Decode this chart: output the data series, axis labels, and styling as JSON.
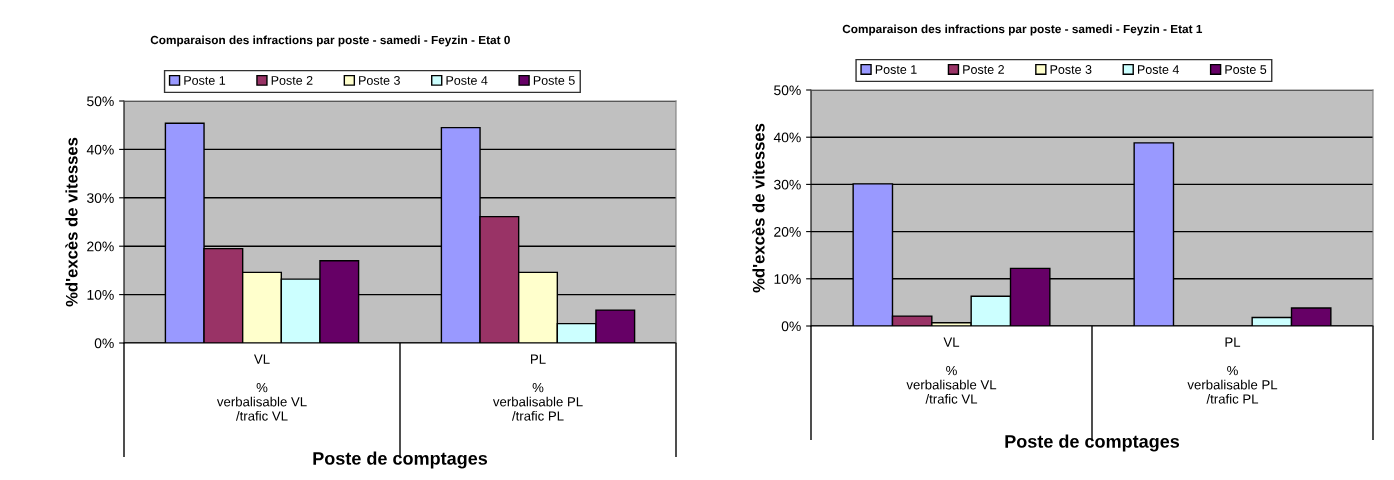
{
  "chart_data": [
    {
      "type": "bar",
      "title": "Comparaison des infractions par poste - samedi - Feyzin - Etat 0",
      "xlabel": "Poste de comptages",
      "ylabel": "%d'excès de vitesses",
      "categories": [
        "VL\n\n%\nverbalisable VL\n/trafic VL",
        "PL\n\n%\nverbalisable PL\n/trafic PL"
      ],
      "series": [
        {
          "name": "Poste 1",
          "color": "#9999ff",
          "values": [
            45.4,
            44.5
          ]
        },
        {
          "name": "Poste 2",
          "color": "#993366",
          "values": [
            19.5,
            26.1
          ]
        },
        {
          "name": "Poste 3",
          "color": "#ffffcc",
          "values": [
            14.6,
            14.6
          ]
        },
        {
          "name": "Poste 4",
          "color": "#ccffff",
          "values": [
            13.2,
            4.0
          ]
        },
        {
          "name": "Poste 5",
          "color": "#660066",
          "values": [
            17.0,
            6.8
          ]
        }
      ],
      "ylim": [
        0,
        50
      ],
      "yticks": [
        {
          "value": 0,
          "label": "0%"
        },
        {
          "value": 10,
          "label": "10%"
        },
        {
          "value": 20,
          "label": "20%"
        },
        {
          "value": 30,
          "label": "30%"
        },
        {
          "value": 40,
          "label": "40%"
        },
        {
          "value": 50,
          "label": "50%"
        }
      ],
      "grid": "y",
      "legend": "top"
    },
    {
      "type": "bar",
      "title": "Comparaison des infractions par poste - samedi - Feyzin - Etat 1",
      "xlabel": "Poste de comptages",
      "ylabel": "%d'excès de vitesses",
      "categories": [
        "VL\n\n%\nverbalisable VL\n/trafic VL",
        "PL\n\n%\nverbalisable PL\n/trafic PL"
      ],
      "series": [
        {
          "name": "Poste 1",
          "color": "#9999ff",
          "values": [
            30.1,
            38.8
          ]
        },
        {
          "name": "Poste 2",
          "color": "#993366",
          "values": [
            2.1,
            null
          ]
        },
        {
          "name": "Poste 3",
          "color": "#ffffcc",
          "values": [
            0.7,
            null
          ]
        },
        {
          "name": "Poste 4",
          "color": "#ccffff",
          "values": [
            6.3,
            1.8
          ]
        },
        {
          "name": "Poste 5",
          "color": "#660066",
          "values": [
            12.2,
            3.8
          ]
        }
      ],
      "ylim": [
        0,
        50
      ],
      "yticks": [
        {
          "value": 0,
          "label": "0%"
        },
        {
          "value": 10,
          "label": "10%"
        },
        {
          "value": 20,
          "label": "20%"
        },
        {
          "value": 30,
          "label": "30%"
        },
        {
          "value": 40,
          "label": "40%"
        },
        {
          "value": 50,
          "label": "50%"
        }
      ],
      "grid": "y",
      "legend": "top"
    }
  ]
}
